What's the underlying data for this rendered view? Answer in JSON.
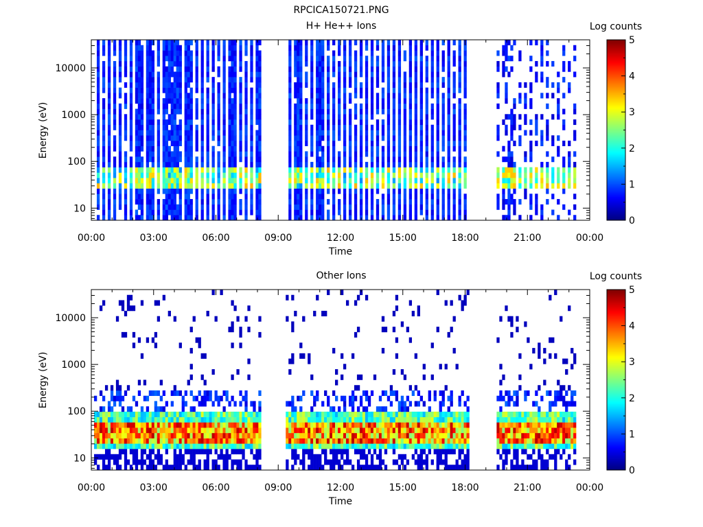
{
  "figure": {
    "title": "RPCICA150721.PNG"
  },
  "chart_data": [
    {
      "type": "heatmap",
      "title": "H+ He++ Ions",
      "xlabel": "Time",
      "ylabel": "Energy (eV)",
      "x_tick_labels": [
        "00:00",
        "03:00",
        "06:00",
        "09:00",
        "12:00",
        "15:00",
        "18:00",
        "21:00",
        "00:00"
      ],
      "x_ticks_hours": [
        0,
        3,
        6,
        9,
        12,
        15,
        18,
        21,
        24
      ],
      "xlim_hours": [
        0,
        24
      ],
      "y_scale": "log",
      "ylim": [
        5.5,
        40000
      ],
      "y_tick_labels": [
        "10",
        "100",
        "1000",
        "10000"
      ],
      "y_ticks": [
        10,
        100,
        1000,
        10000
      ],
      "data_segments_hours": [
        [
          0.1,
          8.2
        ],
        [
          9.35,
          18.2
        ],
        [
          19.5,
          23.4
        ]
      ],
      "data_gaps_hours": [
        [
          8.2,
          9.35
        ],
        [
          18.2,
          19.5
        ],
        [
          23.4,
          24
        ]
      ],
      "peak_energy_band_eV": [
        25,
        70
      ],
      "colorbar": {
        "label": "Log counts",
        "range": [
          0,
          5
        ],
        "tick_labels": [
          "0",
          "1",
          "2",
          "3",
          "4",
          "5"
        ],
        "ticks": [
          0,
          1,
          2,
          3,
          4,
          5
        ],
        "colormap": "jet"
      }
    },
    {
      "type": "heatmap",
      "title": "Other Ions",
      "xlabel": "Time",
      "ylabel": "Energy (eV)",
      "x_tick_labels": [
        "00:00",
        "03:00",
        "06:00",
        "09:00",
        "12:00",
        "15:00",
        "18:00",
        "21:00",
        "00:00"
      ],
      "x_ticks_hours": [
        0,
        3,
        6,
        9,
        12,
        15,
        18,
        21,
        24
      ],
      "xlim_hours": [
        0,
        24
      ],
      "y_scale": "log",
      "ylim": [
        5.5,
        40000
      ],
      "y_tick_labels": [
        "10",
        "100",
        "1000",
        "10000"
      ],
      "y_ticks": [
        10,
        100,
        1000,
        10000
      ],
      "data_segments_hours": [
        [
          0.1,
          8.2
        ],
        [
          9.35,
          18.2
        ],
        [
          19.5,
          23.4
        ]
      ],
      "data_gaps_hours": [
        [
          8.2,
          9.35
        ],
        [
          18.2,
          19.5
        ],
        [
          23.4,
          24
        ]
      ],
      "peak_energy_band_eV": [
        22,
        65
      ],
      "colorbar": {
        "label": "Log counts",
        "range": [
          0,
          5
        ],
        "tick_labels": [
          "0",
          "1",
          "2",
          "3",
          "4",
          "5"
        ],
        "ticks": [
          0,
          1,
          2,
          3,
          4,
          5
        ],
        "colormap": "jet"
      }
    }
  ]
}
